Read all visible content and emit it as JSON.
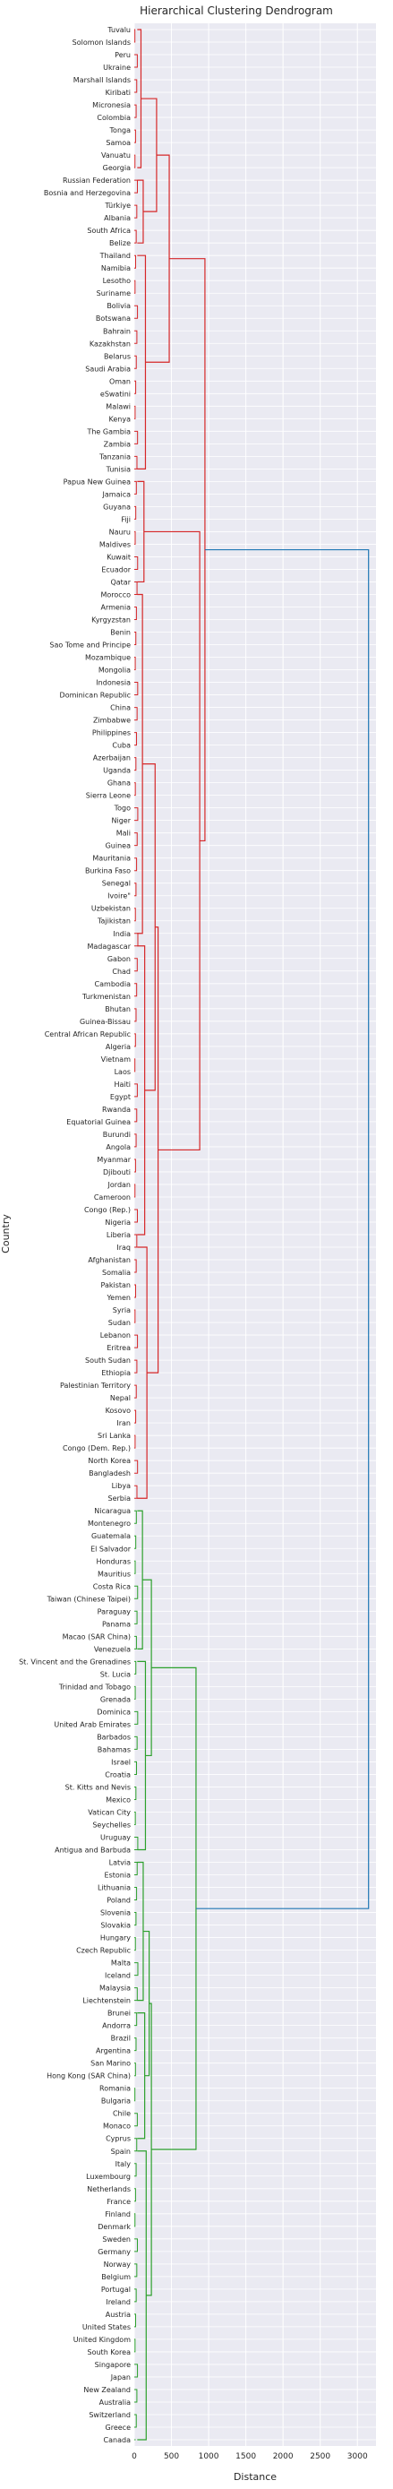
{
  "chart_data": {
    "type": "dendrogram",
    "title": "Hierarchical Clustering Dendrogram",
    "xlabel": "Distance",
    "ylabel": "Country",
    "xlim": [
      0,
      3250
    ],
    "x_ticks": [
      0,
      500,
      1000,
      1500,
      2000,
      2500,
      3000
    ],
    "grid": true,
    "colors": {
      "background": "#eaeaf2",
      "grid": "#ffffff",
      "red": "#d62728",
      "green": "#2ca02c",
      "blue": "#1f77b4"
    },
    "leaves": [
      "Tuvalu",
      "Solomon Islands",
      "Peru",
      "Ukraine",
      "Marshall Islands",
      "Kiribati",
      "Micronesia",
      "Colombia",
      "Tonga",
      "Samoa",
      "Vanuatu",
      "Georgia",
      "Russian Federation",
      "Bosnia and Herzegovina",
      "Türkiye",
      "Albania",
      "South Africa",
      "Belize",
      "Thailand",
      "Namibia",
      "Lesotho",
      "Suriname",
      "Bolivia",
      "Botswana",
      "Bahrain",
      "Kazakhstan",
      "Belarus",
      "Saudi Arabia",
      "Oman",
      "eSwatini",
      "Malawi",
      "Kenya",
      "The Gambia",
      "Zambia",
      "Tanzania",
      "Tunisia",
      "Papua New Guinea",
      "Jamaica",
      "Guyana",
      "Fiji",
      "Nauru",
      "Maldives",
      "Kuwait",
      "Ecuador",
      "Qatar",
      "Morocco",
      "Armenia",
      "Kyrgyzstan",
      "Benin",
      "Sao Tome and Principe",
      "Mozambique",
      "Mongolia",
      "Indonesia",
      "Dominican Republic",
      "China",
      "Zimbabwe",
      "Philippines",
      "Cuba",
      "Azerbaijan",
      "Uganda",
      "Ghana",
      "Sierra Leone",
      "Togo",
      "Niger",
      "Mali",
      "Guinea",
      "Mauritania",
      "Burkina Faso",
      "Senegal",
      "Ivoire\"",
      "Uzbekistan",
      "Tajikistan",
      "India",
      "Madagascar",
      "Gabon",
      "Chad",
      "Cambodia",
      "Turkmenistan",
      "Bhutan",
      "Guinea-Bissau",
      "Central African Republic",
      "Algeria",
      "Vietnam",
      "Laos",
      "Haiti",
      "Egypt",
      "Rwanda",
      "Equatorial Guinea",
      "Burundi",
      "Angola",
      "Myanmar",
      "Djibouti",
      "Jordan",
      "Cameroon",
      "Congo (Rep.)",
      "Nigeria",
      "Liberia",
      "Iraq",
      "Afghanistan",
      "Somalia",
      "Pakistan",
      "Yemen",
      "Syria",
      "Sudan",
      "Lebanon",
      "Eritrea",
      "South Sudan",
      "Ethiopia",
      "Palestinian Territory",
      "Nepal",
      "Kosovo",
      "Iran",
      "Sri Lanka",
      "Congo (Dem. Rep.)",
      "North Korea",
      "Bangladesh",
      "Libya",
      "Serbia",
      "Nicaragua",
      "Montenegro",
      "Guatemala",
      "El Salvador",
      "Honduras",
      "Mauritius",
      "Costa Rica",
      "Taiwan (Chinese Taipei)",
      "Paraguay",
      "Panama",
      "Macao (SAR China)",
      "Venezuela",
      "St. Vincent and the Grenadines",
      "St. Lucia",
      "Trinidad and Tobago",
      "Grenada",
      "Dominica",
      "United Arab Emirates",
      "Barbados",
      "Bahamas",
      "Israel",
      "Croatia",
      "St. Kitts and Nevis",
      "Mexico",
      "Vatican City",
      "Seychelles",
      "Uruguay",
      "Antigua and Barbuda",
      "Latvia",
      "Estonia",
      "Lithuania",
      "Poland",
      "Slovenia",
      "Slovakia",
      "Hungary",
      "Czech Republic",
      "Malta",
      "Iceland",
      "Malaysia",
      "Liechtenstein",
      "Brunei",
      "Andorra",
      "Brazil",
      "Argentina",
      "San Marino",
      "Hong Kong (SAR China)",
      "Romania",
      "Bulgaria",
      "Chile",
      "Monaco",
      "Cyprus",
      "Spain",
      "Italy",
      "Luxembourg",
      "Netherlands",
      "France",
      "Finland",
      "Denmark",
      "Sweden",
      "Germany",
      "Norway",
      "Belgium",
      "Portugal",
      "Ireland",
      "Austria",
      "United States",
      "United Kingdom",
      "South Korea",
      "Singapore",
      "Japan",
      "New Zealand",
      "Australia",
      "Switzerland",
      "Greece",
      "Canada"
    ],
    "clusters": [
      {
        "color": "red",
        "first_leaf": "Tuvalu",
        "last_leaf": "Serbia",
        "merge_distance": 950
      },
      {
        "color": "green",
        "first_leaf": "Nicaragua",
        "last_leaf": "Canada",
        "merge_distance": 830
      },
      {
        "color": "blue",
        "merge": [
          "red",
          "green"
        ],
        "merge_distance": 3150
      }
    ],
    "major_merges": [
      {
        "color": "red",
        "leaves": [
          "Tuvalu",
          "Tunisia"
        ],
        "distance": 470
      },
      {
        "color": "red",
        "leaves": [
          "Papua New Guinea",
          "Serbia"
        ],
        "distance": 880
      },
      {
        "color": "red",
        "leaves": [
          "Morocco",
          "Serbia"
        ],
        "distance": 320
      },
      {
        "color": "green",
        "leaves": [
          "Nicaragua",
          "Antigua and Barbuda"
        ],
        "distance": 230
      },
      {
        "color": "green",
        "leaves": [
          "Latvia",
          "Canada"
        ],
        "distance": 230
      }
    ]
  }
}
